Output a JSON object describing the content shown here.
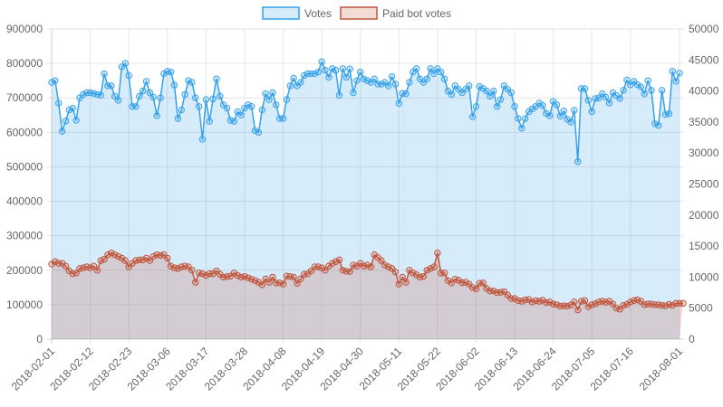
{
  "chart_data": {
    "type": "line",
    "title": "",
    "xlabel": "",
    "ylabel": "",
    "legend_position": "top-center",
    "grid": true,
    "x_ticks": [
      "2018-02-01",
      "2018-02-12",
      "2018-02-23",
      "2018-03-06",
      "2018-03-17",
      "2018-03-28",
      "2018-04-08",
      "2018-04-19",
      "2018-04-30",
      "2018-05-11",
      "2018-05-22",
      "2018-06-02",
      "2018-06-13",
      "2018-06-24",
      "2018-07-05",
      "2018-07-16",
      "2018-08-01"
    ],
    "y_left": {
      "min": 0,
      "max": 900000,
      "step": 100000,
      "ticks": [
        "0",
        "100000",
        "200000",
        "300000",
        "400000",
        "500000",
        "600000",
        "700000",
        "800000",
        "900000"
      ]
    },
    "y_right": {
      "min": 0,
      "max": 50000,
      "step": 5000,
      "ticks": [
        "0",
        "5000",
        "10000",
        "15000",
        "20000",
        "25000",
        "30000",
        "35000",
        "40000",
        "45000",
        "50000"
      ]
    },
    "start_date": "2018-02-01",
    "series": [
      {
        "name": "Votes",
        "axis": "left",
        "line_color": "#36a2eb",
        "fill_color": "rgba(54,162,235,0.2)",
        "point_fill": "rgba(54,162,235,0.2)",
        "values": [
          745000,
          750000,
          685000,
          603000,
          633000,
          665000,
          670000,
          635000,
          700000,
          710000,
          715000,
          715000,
          713000,
          710000,
          708000,
          770000,
          735000,
          735000,
          705000,
          693000,
          790000,
          800000,
          765000,
          675000,
          675000,
          705000,
          720000,
          748000,
          715000,
          702000,
          648000,
          700000,
          770000,
          777000,
          775000,
          737000,
          640000,
          665000,
          710000,
          750000,
          745000,
          700000,
          675000,
          580000,
          695000,
          632000,
          697000,
          755000,
          705000,
          680000,
          670000,
          635000,
          632000,
          660000,
          650000,
          670000,
          680000,
          675000,
          605000,
          600000,
          665000,
          712000,
          695000,
          715000,
          680000,
          640000,
          640000,
          695000,
          735000,
          757000,
          735000,
          745000,
          765000,
          770000,
          770000,
          770000,
          775000,
          805000,
          780000,
          760000,
          785000,
          780000,
          707000,
          785000,
          760000,
          784000,
          715000,
          750000,
          775000,
          755000,
          750000,
          745000,
          755000,
          740000,
          740000,
          745000,
          735000,
          762000,
          740000,
          684000,
          713000,
          712000,
          745000,
          775000,
          785000,
          755000,
          745000,
          755000,
          785000,
          770000,
          785000,
          775000,
          755000,
          720000,
          710000,
          735000,
          725000,
          715000,
          725000,
          735000,
          645000,
          675000,
          733000,
          727000,
          720000,
          705000,
          720000,
          675000,
          695000,
          735000,
          725000,
          715000,
          675000,
          640000,
          612000,
          640000,
          660000,
          668000,
          675000,
          685000,
          678000,
          655000,
          648000,
          690000,
          680000,
          647000,
          662000,
          638000,
          630000,
          664000,
          515000,
          727000,
          727000,
          693000,
          660000,
          698000,
          700000,
          712000,
          702000,
          685000,
          715000,
          707000,
          698000,
          722000,
          752000,
          738000,
          748000,
          738000,
          732000,
          712000,
          750000,
          722000,
          625000,
          620000,
          722000,
          652000,
          654000,
          777000,
          748000,
          772000
        ]
      },
      {
        "name": "Paid bot votes",
        "axis": "left",
        "line_color": "#c0563b",
        "fill_color": "rgba(200,90,70,0.22)",
        "point_fill": "rgba(200,90,70,0.2)",
        "values": [
          218000,
          225000,
          220000,
          220000,
          212000,
          198000,
          190000,
          192000,
          205000,
          207000,
          210000,
          207000,
          212000,
          200000,
          228000,
          232000,
          245000,
          250000,
          245000,
          240000,
          235000,
          228000,
          210000,
          220000,
          228000,
          230000,
          230000,
          235000,
          228000,
          240000,
          245000,
          243000,
          245000,
          235000,
          212000,
          207000,
          205000,
          210000,
          212000,
          210000,
          200000,
          165000,
          192000,
          190000,
          185000,
          190000,
          190000,
          198000,
          188000,
          180000,
          182000,
          183000,
          192000,
          185000,
          180000,
          182000,
          178000,
          174000,
          170000,
          165000,
          158000,
          175000,
          165000,
          180000,
          163000,
          163000,
          160000,
          183000,
          182000,
          180000,
          162000,
          175000,
          188000,
          190000,
          198000,
          210000,
          210000,
          207000,
          200000,
          212000,
          220000,
          225000,
          230000,
          200000,
          197000,
          196000,
          215000,
          212000,
          220000,
          212000,
          215000,
          210000,
          245000,
          237000,
          228000,
          215000,
          210000,
          205000,
          195000,
          160000,
          180000,
          165000,
          200000,
          192000,
          187000,
          180000,
          182000,
          200000,
          205000,
          210000,
          250000,
          192000,
          192000,
          170000,
          163000,
          174000,
          171000,
          164000,
          165000,
          160000,
          150000,
          146000,
          162000,
          163000,
          147000,
          140000,
          140000,
          135000,
          136000,
          138000,
          128000,
          118000,
          118000,
          112000,
          110000,
          114000,
          115000,
          108000,
          112000,
          110000,
          113000,
          106000,
          108000,
          102000,
          100000,
          96000,
          97000,
          96000,
          99000,
          108000,
          85000,
          110000,
          112000,
          94000,
          100000,
          103000,
          108000,
          110000,
          107000,
          110000,
          102000,
          90000,
          87000,
          98000,
          101000,
          108000,
          112000,
          114000,
          110000,
          100000,
          102000,
          102000,
          100000,
          100000,
          98000,
          97000,
          101000,
          98000,
          104000,
          104000,
          104000
        ]
      }
    ]
  }
}
